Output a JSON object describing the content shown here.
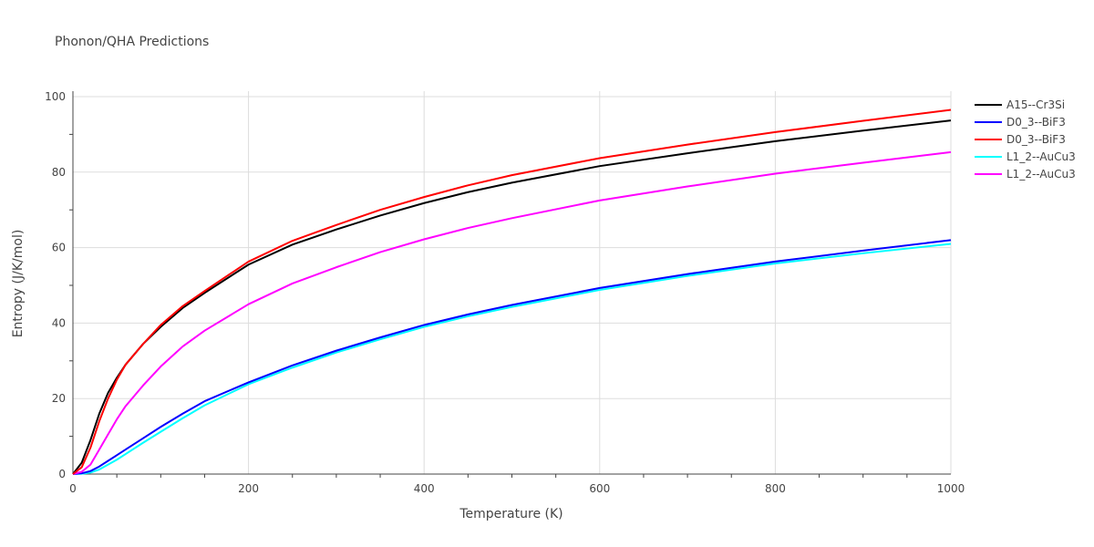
{
  "chart_data": {
    "type": "line",
    "title": "Phonon/QHA Predictions",
    "xlabel": "Temperature (K)",
    "ylabel": "Entropy (J/K/mol)",
    "xlim": [
      0,
      1000
    ],
    "ylim": [
      0,
      100
    ],
    "xticks": [
      0,
      200,
      400,
      600,
      800,
      1000
    ],
    "xtick_labels": [
      "0",
      "200",
      "400",
      "600",
      "800",
      "1000"
    ],
    "yticks": [
      0,
      20,
      40,
      60,
      80,
      100
    ],
    "ytick_labels": [
      "0",
      "20",
      "40",
      "60",
      "80",
      "100"
    ],
    "grid": true,
    "legend_position": "top-right",
    "x": [
      0,
      10,
      20,
      30,
      40,
      50,
      60,
      80,
      100,
      125,
      150,
      200,
      250,
      300,
      350,
      400,
      450,
      500,
      600,
      700,
      800,
      900,
      1000
    ],
    "series": [
      {
        "name": "A15--Cr3Si",
        "color": "#000000",
        "values": [
          0,
          3,
          9,
          16,
          21.5,
          25.5,
          29,
          34.5,
          39,
          44,
          48,
          55.5,
          60.8,
          64.8,
          68.5,
          71.8,
          74.7,
          77.2,
          81.6,
          85.0,
          88.2,
          91.0,
          93.7
        ]
      },
      {
        "name": "D0_3--BiF3",
        "color": "#0000ff",
        "values": [
          0,
          0.2,
          0.8,
          2,
          3.5,
          5,
          6.5,
          9.5,
          12.5,
          16,
          19.3,
          24.3,
          28.8,
          32.7,
          36.2,
          39.5,
          42.3,
          44.8,
          49.3,
          53.0,
          56.3,
          59.2,
          62.0
        ]
      },
      {
        "name": "D0_3--BiF3",
        "color": "#ff0000",
        "values": [
          0,
          1.8,
          7,
          14,
          20,
          25,
          29,
          34.5,
          39.5,
          44.5,
          48.5,
          56.3,
          61.8,
          66.0,
          70.0,
          73.4,
          76.5,
          79.2,
          83.7,
          87.3,
          90.6,
          93.6,
          96.5
        ]
      },
      {
        "name": "L1_2--AuCu3",
        "color": "#00ffff",
        "values": [
          0,
          0.1,
          0.4,
          1.2,
          2.5,
          3.8,
          5.3,
          8.3,
          11.2,
          14.8,
          18.2,
          23.8,
          28.2,
          32.2,
          35.7,
          39.0,
          41.8,
          44.3,
          48.8,
          52.5,
          55.8,
          58.5,
          61.0
        ]
      },
      {
        "name": "L1_2--AuCu3",
        "color": "#ff00ff",
        "values": [
          0,
          0.6,
          2.5,
          6.5,
          10.5,
          14.5,
          18,
          23.5,
          28.5,
          33.8,
          38.0,
          45.0,
          50.5,
          54.8,
          58.8,
          62.2,
          65.2,
          67.8,
          72.5,
          76.2,
          79.6,
          82.5,
          85.3
        ]
      }
    ]
  }
}
